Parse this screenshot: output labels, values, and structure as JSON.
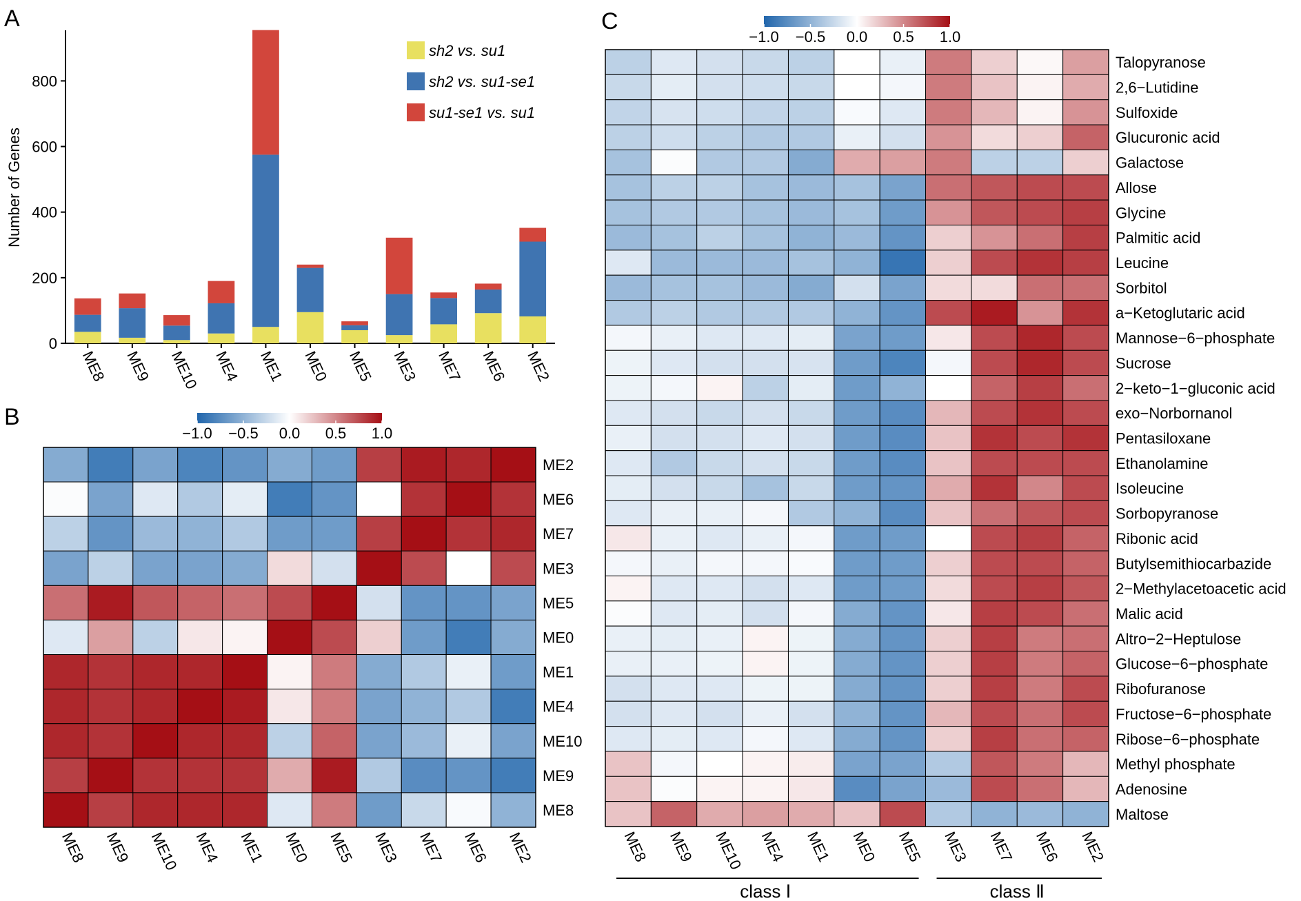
{
  "colors": {
    "sh2_vs_su1": "#e8e060",
    "sh2_vs_su1se1": "#3f74b1",
    "su1se1_vs_su1": "#d2463c",
    "heat_low": "#2166ac",
    "heat_mid": "#ffffff",
    "heat_high": "#a50f15"
  },
  "panels": {
    "a": "A",
    "b": "B",
    "c": "C"
  },
  "chart_data": [
    {
      "id": "A",
      "type": "bar",
      "stacked": true,
      "ylabel": "Number of Genes",
      "ylim": [
        0,
        950
      ],
      "yticks": [
        0,
        200,
        400,
        600,
        800
      ],
      "categories": [
        "ME8",
        "ME9",
        "ME10",
        "ME4",
        "ME1",
        "ME0",
        "ME5",
        "ME3",
        "ME7",
        "ME6",
        "ME2"
      ],
      "series": [
        {
          "name": "sh2 vs. su1",
          "colorKey": "sh2_vs_su1",
          "values": [
            35,
            17,
            10,
            30,
            50,
            95,
            40,
            25,
            58,
            92,
            82
          ]
        },
        {
          "name": "sh2 vs. su1-se1",
          "colorKey": "sh2_vs_su1se1",
          "values": [
            52,
            90,
            44,
            92,
            525,
            135,
            15,
            125,
            80,
            72,
            228
          ]
        },
        {
          "name": "su1-se1 vs. su1",
          "colorKey": "su1se1_vs_su1",
          "values": [
            50,
            45,
            32,
            68,
            380,
            10,
            12,
            172,
            17,
            18,
            42
          ]
        }
      ],
      "legend": {
        "placement": "top-right"
      }
    },
    {
      "id": "B",
      "type": "heatmap",
      "colorbar": {
        "ticks": [
          "−1.0",
          "−0.5",
          "0.0",
          "0.5",
          "1.0"
        ],
        "range": [
          -1,
          1
        ]
      },
      "rows": [
        "ME2",
        "ME6",
        "ME7",
        "ME3",
        "ME5",
        "ME0",
        "ME1",
        "ME4",
        "ME10",
        "ME9",
        "ME8"
      ],
      "cols": [
        "ME8",
        "ME9",
        "ME10",
        "ME4",
        "ME1",
        "ME0",
        "ME5",
        "ME3",
        "ME7",
        "ME6",
        "ME2"
      ],
      "values": [
        [
          -0.55,
          -0.85,
          -0.6,
          -0.8,
          -0.7,
          -0.55,
          -0.65,
          0.8,
          0.95,
          0.9,
          1.0
        ],
        [
          -0.02,
          -0.6,
          -0.15,
          -0.35,
          -0.12,
          -0.85,
          -0.7,
          0.0,
          0.85,
          1.0,
          0.85
        ],
        [
          -0.3,
          -0.7,
          -0.45,
          -0.5,
          -0.35,
          -0.65,
          -0.65,
          0.8,
          1.0,
          0.85,
          0.9
        ],
        [
          -0.6,
          -0.3,
          -0.6,
          -0.6,
          -0.55,
          0.15,
          -0.2,
          1.0,
          0.75,
          0.0,
          0.75
        ],
        [
          0.6,
          0.95,
          0.7,
          0.65,
          0.6,
          0.75,
          1.0,
          -0.2,
          -0.7,
          -0.7,
          -0.6
        ],
        [
          -0.15,
          0.4,
          -0.3,
          0.1,
          0.05,
          1.0,
          0.75,
          0.2,
          -0.65,
          -0.85,
          -0.55
        ],
        [
          0.9,
          0.85,
          0.9,
          0.9,
          1.0,
          0.05,
          0.55,
          -0.55,
          -0.35,
          -0.1,
          -0.65
        ],
        [
          0.9,
          0.85,
          0.9,
          1.0,
          0.95,
          0.1,
          0.55,
          -0.6,
          -0.5,
          -0.35,
          -0.85
        ],
        [
          0.9,
          0.85,
          1.0,
          0.9,
          0.9,
          -0.3,
          0.65,
          -0.6,
          -0.45,
          -0.1,
          -0.6
        ],
        [
          0.8,
          1.0,
          0.85,
          0.85,
          0.85,
          0.35,
          0.95,
          -0.35,
          -0.75,
          -0.7,
          -0.85
        ],
        [
          1.0,
          0.8,
          0.9,
          0.9,
          0.9,
          -0.15,
          0.55,
          -0.65,
          -0.25,
          -0.03,
          -0.5
        ]
      ]
    },
    {
      "id": "C",
      "type": "heatmap",
      "colorbar": {
        "ticks": [
          "−1.0",
          "−0.5",
          "0.0",
          "0.5",
          "1.0"
        ],
        "range": [
          -1,
          1
        ]
      },
      "rows": [
        "Talopyranose",
        "2,6−Lutidine",
        "Sulfoxide",
        "Glucuronic acid",
        "Galactose",
        "Allose",
        "Glycine",
        "Palmitic acid",
        "Leucine",
        "Sorbitol",
        "a−Ketoglutaric acid",
        "Mannose−6−phosphate",
        "Sucrose",
        "2−keto−1−gluconic acid",
        "exo−Norbornanol",
        "Pentasiloxane",
        "Ethanolamine",
        "Isoleucine",
        "Sorbopyranose",
        "Ribonic acid",
        "Butylsemithiocarbazide",
        "2−Methylacetoacetic acid",
        "Malic acid",
        "Altro−2−Heptulose",
        "Glucose−6−phosphate",
        "Ribofuranose",
        "Fructose−6−phosphate",
        "Ribose−6−phosphate",
        "Methyl phosphate",
        "Adenosine",
        "Maltose"
      ],
      "cols": [
        "ME8",
        "ME9",
        "ME10",
        "ME4",
        "ME1",
        "ME0",
        "ME5",
        "ME3",
        "ME7",
        "ME6",
        "ME2"
      ],
      "values": [
        [
          -0.3,
          -0.15,
          -0.2,
          -0.25,
          -0.3,
          0.0,
          -0.1,
          0.55,
          0.2,
          0.03,
          0.4
        ],
        [
          -0.25,
          -0.12,
          -0.2,
          -0.22,
          -0.25,
          0.0,
          -0.05,
          0.55,
          0.25,
          0.05,
          0.35
        ],
        [
          -0.28,
          -0.18,
          -0.22,
          -0.28,
          -0.3,
          -0.03,
          -0.15,
          0.55,
          0.3,
          0.05,
          0.45
        ],
        [
          -0.3,
          -0.22,
          -0.3,
          -0.35,
          -0.35,
          -0.1,
          -0.2,
          0.45,
          0.15,
          0.2,
          0.65
        ],
        [
          -0.4,
          -0.02,
          -0.35,
          -0.35,
          -0.55,
          0.35,
          0.4,
          0.55,
          -0.3,
          -0.3,
          0.2
        ],
        [
          -0.4,
          -0.3,
          -0.3,
          -0.4,
          -0.45,
          -0.4,
          -0.6,
          0.6,
          0.7,
          0.75,
          0.75
        ],
        [
          -0.4,
          -0.35,
          -0.35,
          -0.4,
          -0.45,
          -0.4,
          -0.65,
          0.45,
          0.7,
          0.75,
          0.8
        ],
        [
          -0.45,
          -0.4,
          -0.3,
          -0.4,
          -0.5,
          -0.45,
          -0.7,
          0.2,
          0.45,
          0.6,
          0.8
        ],
        [
          -0.15,
          -0.45,
          -0.45,
          -0.45,
          -0.4,
          -0.5,
          -0.9,
          0.2,
          0.75,
          0.85,
          0.8
        ],
        [
          -0.45,
          -0.4,
          -0.4,
          -0.45,
          -0.55,
          -0.2,
          -0.6,
          0.15,
          0.15,
          0.6,
          0.6
        ],
        [
          -0.35,
          -0.3,
          -0.35,
          -0.35,
          -0.35,
          -0.5,
          -0.7,
          0.75,
          0.95,
          0.45,
          0.85
        ],
        [
          -0.05,
          -0.1,
          -0.15,
          -0.15,
          -0.12,
          -0.6,
          -0.65,
          0.1,
          0.75,
          0.9,
          0.75
        ],
        [
          -0.08,
          -0.15,
          -0.2,
          -0.2,
          -0.18,
          -0.65,
          -0.8,
          -0.05,
          0.75,
          0.9,
          0.75
        ],
        [
          -0.08,
          -0.05,
          0.05,
          -0.3,
          -0.12,
          -0.65,
          -0.5,
          0.0,
          0.65,
          0.8,
          0.6
        ],
        [
          -0.15,
          -0.2,
          -0.25,
          -0.2,
          -0.25,
          -0.65,
          -0.75,
          0.3,
          0.75,
          0.85,
          0.75
        ],
        [
          -0.1,
          -0.2,
          -0.2,
          -0.15,
          -0.2,
          -0.65,
          -0.75,
          0.25,
          0.85,
          0.75,
          0.85
        ],
        [
          -0.15,
          -0.35,
          -0.25,
          -0.2,
          -0.25,
          -0.65,
          -0.75,
          0.25,
          0.75,
          0.75,
          0.75
        ],
        [
          -0.12,
          -0.2,
          -0.25,
          -0.4,
          -0.25,
          -0.65,
          -0.7,
          0.35,
          0.85,
          0.5,
          0.75
        ],
        [
          -0.15,
          -0.1,
          -0.1,
          -0.05,
          -0.35,
          -0.5,
          -0.75,
          0.25,
          0.6,
          0.7,
          0.75
        ],
        [
          0.1,
          -0.1,
          -0.15,
          -0.1,
          -0.05,
          -0.65,
          -0.65,
          0.0,
          0.75,
          0.8,
          0.65
        ],
        [
          -0.05,
          -0.1,
          -0.05,
          -0.05,
          -0.03,
          -0.65,
          -0.65,
          0.2,
          0.75,
          0.75,
          0.65
        ],
        [
          0.05,
          -0.15,
          -0.15,
          -0.2,
          -0.15,
          -0.65,
          -0.65,
          0.15,
          0.75,
          0.8,
          0.7
        ],
        [
          -0.02,
          -0.15,
          -0.12,
          -0.2,
          -0.05,
          -0.55,
          -0.7,
          0.1,
          0.8,
          0.75,
          0.6
        ],
        [
          -0.1,
          -0.12,
          -0.1,
          0.05,
          -0.08,
          -0.55,
          -0.7,
          0.2,
          0.8,
          0.55,
          0.6
        ],
        [
          -0.1,
          -0.1,
          -0.08,
          0.05,
          -0.08,
          -0.55,
          -0.7,
          0.2,
          0.8,
          0.55,
          0.65
        ],
        [
          -0.2,
          -0.15,
          -0.15,
          -0.08,
          -0.08,
          -0.55,
          -0.7,
          0.2,
          0.8,
          0.55,
          0.75
        ],
        [
          -0.2,
          -0.15,
          -0.2,
          -0.1,
          -0.2,
          -0.5,
          -0.7,
          0.3,
          0.75,
          0.6,
          0.75
        ],
        [
          -0.15,
          -0.12,
          -0.15,
          -0.05,
          -0.15,
          -0.55,
          -0.7,
          0.2,
          0.8,
          0.6,
          0.65
        ],
        [
          0.25,
          -0.05,
          0.0,
          0.05,
          0.08,
          -0.6,
          -0.6,
          -0.35,
          0.7,
          0.55,
          0.3
        ],
        [
          0.25,
          -0.02,
          0.05,
          0.05,
          0.1,
          -0.75,
          -0.6,
          -0.45,
          0.75,
          0.6,
          0.3
        ],
        [
          0.25,
          0.65,
          0.35,
          0.4,
          0.35,
          0.25,
          0.75,
          -0.35,
          -0.5,
          -0.45,
          -0.5
        ]
      ],
      "groups": [
        {
          "label": "class Ⅰ",
          "fromCol": 0,
          "toCol": 6
        },
        {
          "label": "class Ⅱ",
          "fromCol": 7,
          "toCol": 10
        }
      ]
    }
  ]
}
